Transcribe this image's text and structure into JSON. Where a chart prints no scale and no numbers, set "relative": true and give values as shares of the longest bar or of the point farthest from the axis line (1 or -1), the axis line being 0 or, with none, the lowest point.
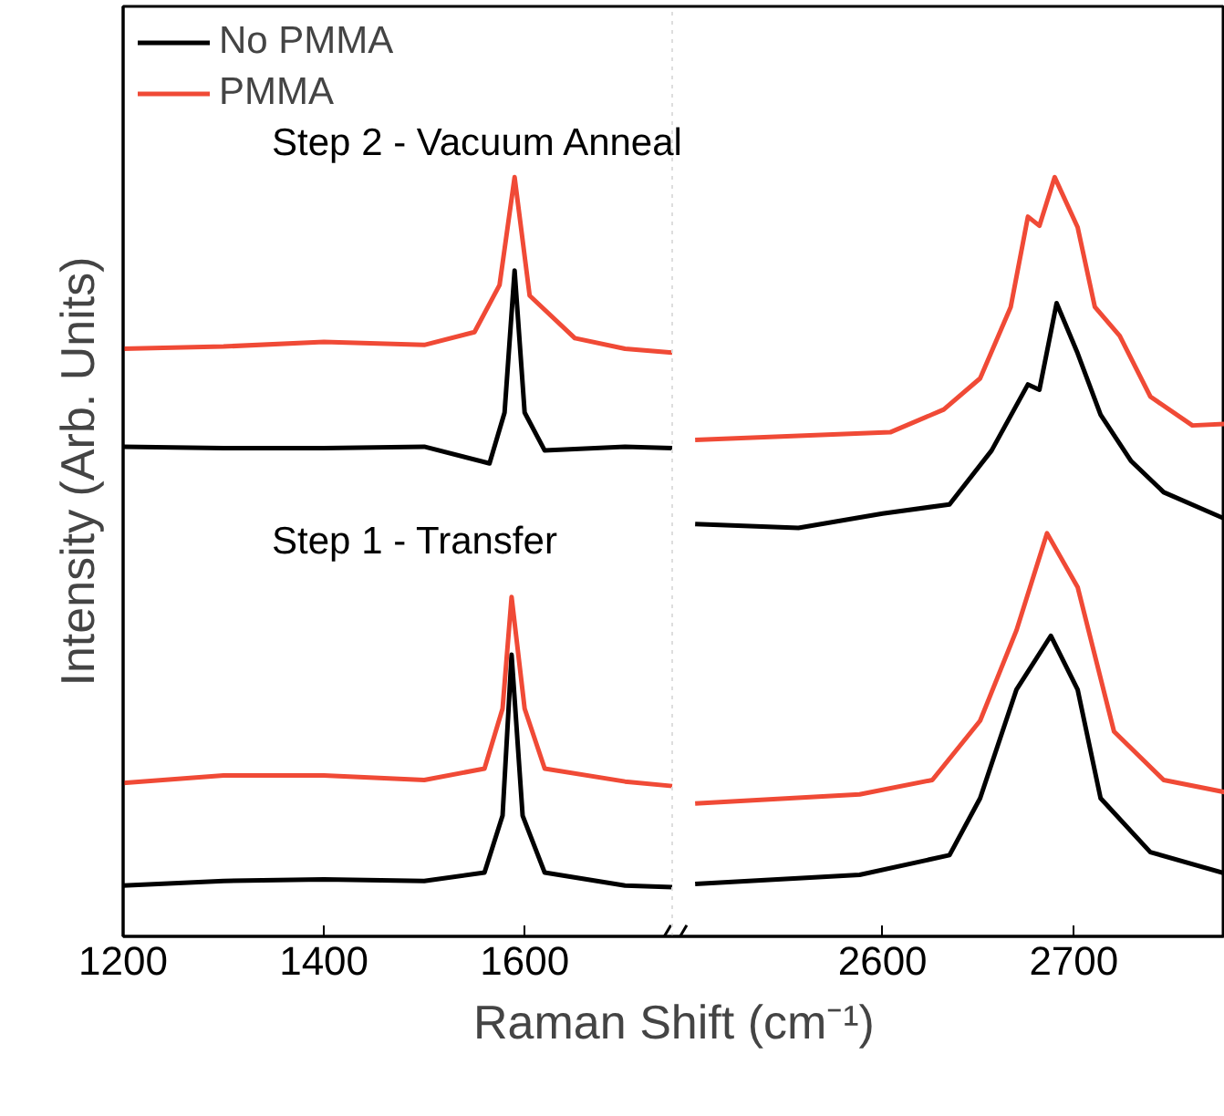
{
  "chart_data": [
    {
      "type": "line",
      "relative": true,
      "xlabel": "Raman Shift (cm⁻¹)",
      "ylabel": "Intensity (Arb. Units)",
      "xlim": [
        1200,
        1747
      ],
      "xticks": [
        1200,
        1400,
        1600
      ],
      "tick_labels": "x",
      "legend": "top left",
      "annotations": [
        "Step 2 - Vacuum Anneal",
        "Step 1 - Transfer"
      ],
      "series": [
        {
          "name": "No PMMA",
          "color": "#000000",
          "x": [
            1200,
            1300,
            1400,
            1500,
            1565,
            1580,
            1590,
            1600,
            1620,
            1700,
            1747
          ],
          "values": [
            0.645,
            0.643,
            0.643,
            0.645,
            0.623,
            0.69,
            0.877,
            0.69,
            0.64,
            0.645,
            0.643
          ]
        },
        {
          "name": "PMMA",
          "color": "#f04a36",
          "x": [
            1200,
            1300,
            1400,
            1500,
            1550,
            1575,
            1590,
            1605,
            1650,
            1700,
            1747
          ],
          "values": [
            0.774,
            0.777,
            0.783,
            0.779,
            0.796,
            0.858,
            1.0,
            0.844,
            0.788,
            0.774,
            0.769
          ]
        },
        {
          "color": "#000000",
          "x": [
            1200,
            1300,
            1400,
            1500,
            1560,
            1578,
            1587,
            1598,
            1620,
            1700,
            1747
          ],
          "values": [
            0.067,
            0.073,
            0.075,
            0.073,
            0.084,
            0.159,
            0.371,
            0.159,
            0.084,
            0.067,
            0.065
          ]
        },
        {
          "color": "#f04a36",
          "x": [
            1200,
            1300,
            1400,
            1500,
            1560,
            1578,
            1587,
            1600,
            1620,
            1700,
            1747
          ],
          "values": [
            0.202,
            0.212,
            0.212,
            0.206,
            0.221,
            0.3,
            0.447,
            0.3,
            0.221,
            0.204,
            0.198
          ]
        }
      ]
    },
    {
      "type": "line",
      "relative": true,
      "xlim": [
        2490,
        2779
      ],
      "xticks": [
        2600,
        2700
      ],
      "tick_labels": "x",
      "series": [
        {
          "color": "#000000",
          "x": [
            2502,
            2556,
            2600,
            2635,
            2657,
            2676,
            2682,
            2691,
            2702,
            2714,
            2730,
            2747,
            2779
          ],
          "values": [
            0.543,
            0.538,
            0.557,
            0.569,
            0.64,
            0.727,
            0.72,
            0.834,
            0.768,
            0.687,
            0.626,
            0.585,
            0.55
          ]
        },
        {
          "color": "#f04a36",
          "x": [
            2502,
            2604,
            2632,
            2651,
            2667,
            2676,
            2682,
            2690,
            2702,
            2711,
            2724,
            2740,
            2762,
            2779
          ],
          "values": [
            0.654,
            0.664,
            0.694,
            0.735,
            0.829,
            0.948,
            0.936,
            1.0,
            0.934,
            0.829,
            0.791,
            0.711,
            0.673,
            0.675
          ]
        },
        {
          "color": "#000000",
          "x": [
            2502,
            2588,
            2635,
            2651,
            2670,
            2688,
            2702,
            2714,
            2740,
            2779
          ],
          "values": [
            0.069,
            0.081,
            0.107,
            0.182,
            0.325,
            0.396,
            0.325,
            0.182,
            0.111,
            0.083
          ]
        },
        {
          "color": "#f04a36",
          "x": [
            2502,
            2588,
            2626,
            2651,
            2670,
            2686,
            2702,
            2721,
            2747,
            2779
          ],
          "values": [
            0.175,
            0.187,
            0.206,
            0.284,
            0.403,
            0.531,
            0.46,
            0.27,
            0.206,
            0.19
          ]
        }
      ]
    }
  ]
}
